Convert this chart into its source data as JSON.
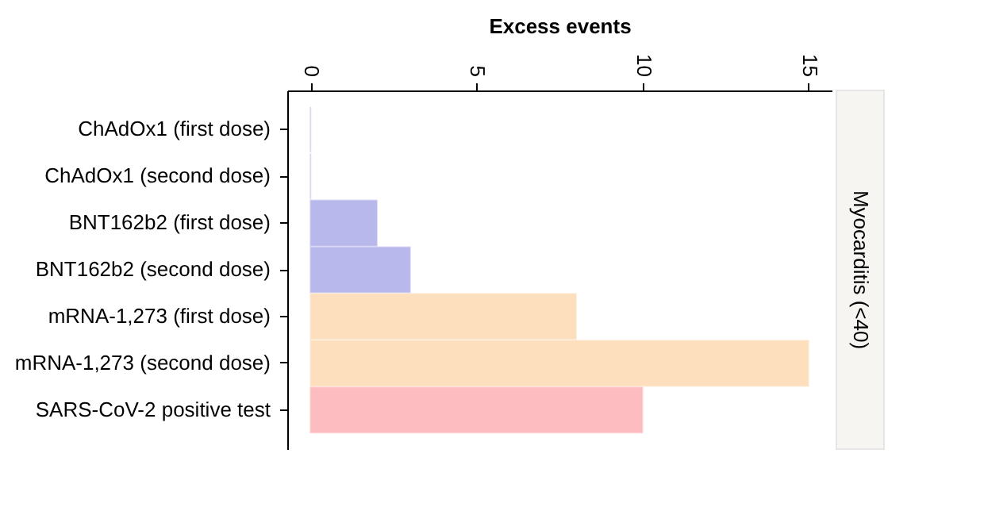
{
  "chart_data": {
    "type": "bar",
    "orientation": "horizontal",
    "xlabel": "Excess events",
    "categories": [
      "ChAdOx1 (first dose)",
      "ChAdOx1 (second dose)",
      "BNT162b2 (first dose)",
      "BNT162b2 (second dose)",
      "mRNA-1,273 (first dose)",
      "mRNA-1,273 (second dose)",
      "SARS-CoV-2 positive test"
    ],
    "values": [
      0,
      0,
      2,
      3,
      8,
      15,
      10
    ],
    "colors": [
      "#b9b8ec",
      "#b9b8ec",
      "#b9b8ec",
      "#b9b8ec",
      "#fddfbd",
      "#fddfbd",
      "#fdbcc0"
    ],
    "xlim": [
      -0.7,
      15.7
    ],
    "xticks": [
      0,
      5,
      10,
      15
    ],
    "grid": false,
    "annotations": [
      "Myocarditis (<40)"
    ]
  }
}
